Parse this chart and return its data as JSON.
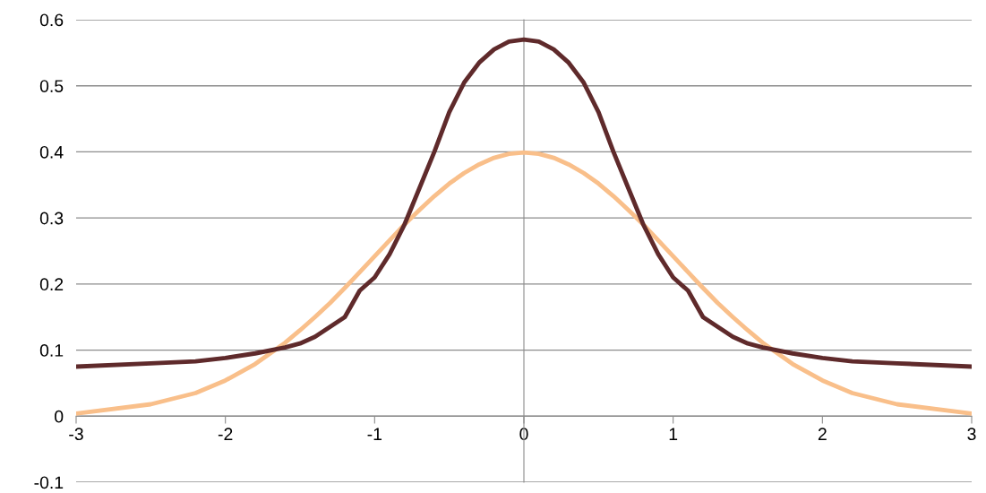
{
  "chart_data": {
    "type": "line",
    "x": [
      -3,
      -2.5,
      -2.2,
      -2,
      -1.8,
      -1.6,
      -1.5,
      -1.4,
      -1.3,
      -1.2,
      -1.1,
      -1,
      -0.9,
      -0.8,
      -0.7,
      -0.6,
      -0.5,
      -0.4,
      -0.3,
      -0.2,
      -0.1,
      0,
      0.1,
      0.2,
      0.3,
      0.4,
      0.5,
      0.6,
      0.7,
      0.8,
      0.9,
      1,
      1.1,
      1.2,
      1.3,
      1.4,
      1.5,
      1.6,
      1.8,
      2,
      2.2,
      2.5,
      3
    ],
    "series": [
      {
        "color": "#f9bf8a",
        "values": [
          0.004,
          0.018,
          0.035,
          0.054,
          0.079,
          0.111,
          0.13,
          0.15,
          0.171,
          0.194,
          0.218,
          0.242,
          0.266,
          0.29,
          0.312,
          0.333,
          0.352,
          0.368,
          0.381,
          0.391,
          0.397,
          0.399,
          0.397,
          0.391,
          0.381,
          0.368,
          0.352,
          0.333,
          0.312,
          0.29,
          0.266,
          0.242,
          0.218,
          0.194,
          0.171,
          0.15,
          0.13,
          0.111,
          0.079,
          0.054,
          0.035,
          0.018,
          0.004
        ]
      },
      {
        "color": "#5f2a2b",
        "values": [
          0.075,
          0.08,
          0.083,
          0.088,
          0.095,
          0.104,
          0.11,
          0.12,
          0.135,
          0.15,
          0.19,
          0.21,
          0.245,
          0.29,
          0.345,
          0.4,
          0.46,
          0.505,
          0.535,
          0.555,
          0.567,
          0.57,
          0.567,
          0.555,
          0.535,
          0.505,
          0.46,
          0.4,
          0.345,
          0.29,
          0.245,
          0.21,
          0.19,
          0.15,
          0.135,
          0.12,
          0.11,
          0.104,
          0.095,
          0.088,
          0.083,
          0.08,
          0.075
        ]
      }
    ],
    "xlim": [
      -3,
      3
    ],
    "xticks": [
      -3,
      -2,
      -1,
      0,
      1,
      2,
      3
    ],
    "ylim": [
      -0.1,
      0.6
    ],
    "yticks": [
      -0.1,
      0,
      0.1,
      0.2,
      0.3,
      0.4,
      0.5,
      0.6
    ],
    "grid": "y",
    "legend": false,
    "marker": "none",
    "line_style": "solid"
  }
}
